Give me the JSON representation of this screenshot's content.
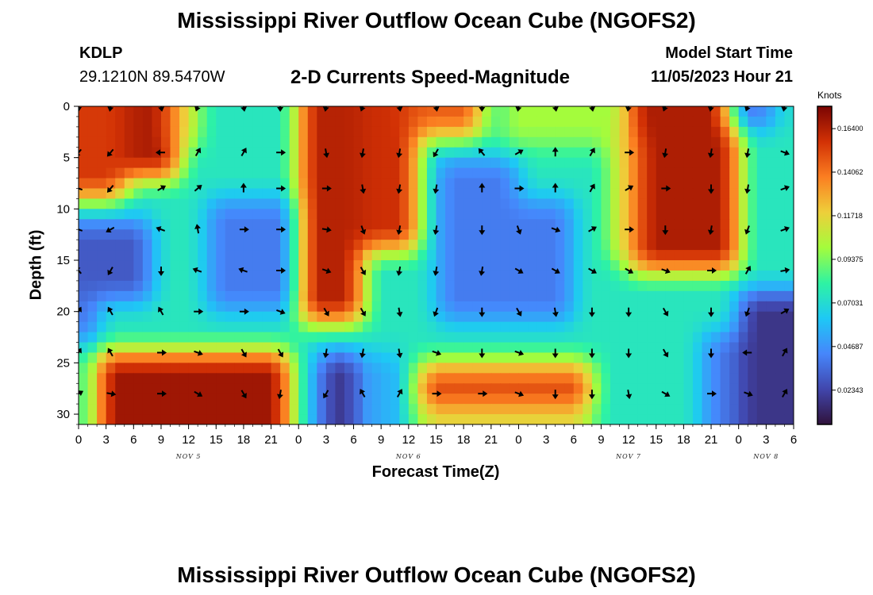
{
  "header": {
    "title_top": "Mississippi River Outflow Ocean Cube (NGOFS2)",
    "title_bottom": "Mississippi River Outflow Ocean Cube (NGOFS2)",
    "station": "KDLP",
    "coords": "29.1210N  89.5470W",
    "subtitle": "2-D Currents Speed-Magnitude",
    "model_start_label": "Model Start Time",
    "model_start_value": "11/05/2023 Hour 21"
  },
  "colors": {
    "palette": [
      "#30123b",
      "#4146ac",
      "#4686fb",
      "#1ec8f5",
      "#2ef3a3",
      "#a4fc3c",
      "#eecf3a",
      "#fb7e21",
      "#d23105",
      "#7a0403"
    ]
  },
  "chart_data": {
    "type": "heatmap",
    "title": "2-D Currents Speed-Magnitude",
    "xlabel": "Forecast Time(Z)",
    "ylabel": "Depth (ft)",
    "xlim": [
      0,
      78
    ],
    "ylim": [
      31,
      0
    ],
    "x_ticks": [
      0,
      3,
      6,
      9,
      12,
      15,
      18,
      21,
      24,
      27,
      30,
      33,
      36,
      39,
      42,
      45,
      48,
      51,
      54,
      57,
      60,
      63,
      66,
      69,
      72,
      75,
      78
    ],
    "x_tick_labels": [
      "0",
      "3",
      "6",
      "9",
      "12",
      "15",
      "18",
      "21",
      "0",
      "3",
      "6",
      "9",
      "12",
      "15",
      "18",
      "21",
      "0",
      "3",
      "6",
      "9",
      "12",
      "15",
      "18",
      "21",
      "0",
      "3",
      "6"
    ],
    "y_ticks": [
      0,
      5,
      10,
      15,
      20,
      25,
      30
    ],
    "y_tick_labels": [
      "0",
      "5",
      "10",
      "15",
      "20",
      "25",
      "30"
    ],
    "date_labels": [
      {
        "x": 12,
        "text": "NOV 5"
      },
      {
        "x": 36,
        "text": "NOV 6"
      },
      {
        "x": 60,
        "text": "NOV 7"
      },
      {
        "x": 75,
        "text": "NOV 8"
      }
    ],
    "colorbar": {
      "units": "Knots",
      "vmin": 0.005,
      "vmax": 0.176,
      "tick_values": [
        0.02343,
        0.04687,
        0.07031,
        0.09375,
        0.11718,
        0.14062,
        0.164
      ],
      "tick_labels": [
        "0.02343",
        "0.04687",
        "0.07031",
        "0.09375",
        "0.11718",
        "0.14062",
        "0.16400"
      ]
    },
    "regions": [
      {
        "x0": 0,
        "x1": 11,
        "y0": 0,
        "y1": 7,
        "v": 0.165
      },
      {
        "x0": 0,
        "x1": 5,
        "y0": 0,
        "y1": 8.5,
        "v": 0.155
      },
      {
        "x0": 10,
        "x1": 13,
        "y0": 0,
        "y1": 4,
        "v": 0.12
      },
      {
        "x0": 14,
        "x1": 24,
        "y0": 9,
        "y1": 20,
        "v": 0.04
      },
      {
        "x0": 0,
        "x1": 8,
        "y0": 11.5,
        "y1": 19,
        "v": 0.03
      },
      {
        "x0": 0,
        "x1": 2,
        "y0": 18,
        "y1": 23,
        "v": 0.035
      },
      {
        "x0": 24,
        "x1": 31,
        "y0": 0,
        "y1": 20.5,
        "v": 0.163
      },
      {
        "x0": 31,
        "x1": 37,
        "y0": 0,
        "y1": 14,
        "v": 0.158
      },
      {
        "x0": 36,
        "x1": 44,
        "y0": 0,
        "y1": 3,
        "v": 0.145
      },
      {
        "x0": 39,
        "x1": 48,
        "y0": 5,
        "y1": 9.5,
        "v": 0.04
      },
      {
        "x0": 39,
        "x1": 54,
        "y0": 9.5,
        "y1": 21,
        "v": 0.04
      },
      {
        "x0": 46,
        "x1": 60,
        "y0": 0,
        "y1": 4,
        "v": 0.1
      },
      {
        "x0": 60,
        "x1": 72,
        "y0": 0,
        "y1": 16,
        "v": 0.165
      },
      {
        "x0": 58,
        "x1": 61,
        "y0": 3,
        "y1": 15,
        "v": 0.12
      },
      {
        "x0": 71,
        "x1": 76,
        "y0": 0,
        "y1": 2,
        "v": 0.035
      },
      {
        "x0": 72,
        "x1": 78,
        "y0": 18,
        "y1": 31,
        "v": 0.018
      },
      {
        "x0": 68,
        "x1": 72,
        "y0": 22,
        "y1": 31,
        "v": 0.04
      },
      {
        "x0": 2.5,
        "x1": 22.5,
        "y0": 24.5,
        "y1": 30.5,
        "v": 0.168
      },
      {
        "x0": 26,
        "x1": 31,
        "y0": 24,
        "y1": 31,
        "v": 0.02
      },
      {
        "x0": 32,
        "x1": 35,
        "y0": 24,
        "y1": 31,
        "v": 0.05
      },
      {
        "x0": 37,
        "x1": 56,
        "y0": 25,
        "y1": 30,
        "v": 0.148
      }
    ],
    "vectors": {
      "x": [
        0,
        3.5,
        9,
        13,
        18,
        22,
        27,
        31,
        35,
        39,
        44,
        48,
        52,
        56,
        60,
        64,
        69,
        73,
        77
      ],
      "depth": [
        0,
        4.5,
        8,
        12,
        16,
        20,
        24,
        28
      ],
      "angles_deg": [
        [
          90,
          100,
          80,
          110,
          80,
          90,
          100,
          110,
          80,
          80,
          90,
          100,
          80,
          80,
          100,
          110,
          100,
          110,
          100
        ],
        [
          130,
          130,
          180,
          300,
          300,
          0,
          80,
          100,
          100,
          120,
          230,
          330,
          270,
          300,
          0,
          100,
          100,
          100,
          20
        ],
        [
          200,
          130,
          330,
          320,
          270,
          0,
          0,
          80,
          100,
          100,
          270,
          0,
          270,
          300,
          330,
          0,
          90,
          100,
          340
        ],
        [
          200,
          150,
          200,
          260,
          0,
          0,
          10,
          70,
          100,
          100,
          90,
          70,
          20,
          330,
          0,
          90,
          100,
          110,
          340
        ],
        [
          230,
          120,
          90,
          200,
          200,
          0,
          20,
          60,
          100,
          100,
          100,
          30,
          30,
          30,
          30,
          20,
          0,
          300,
          350
        ],
        [
          300,
          240,
          240,
          0,
          0,
          20,
          60,
          60,
          80,
          110,
          90,
          60,
          80,
          90,
          90,
          60,
          90,
          110,
          330
        ],
        [
          300,
          240,
          0,
          20,
          60,
          60,
          100,
          100,
          80,
          20,
          90,
          20,
          90,
          90,
          90,
          60,
          90,
          180,
          300
        ],
        [
          330,
          10,
          0,
          30,
          60,
          100,
          120,
          240,
          300,
          0,
          0,
          20,
          90,
          90,
          80,
          30,
          0,
          20,
          300
        ]
      ]
    }
  }
}
